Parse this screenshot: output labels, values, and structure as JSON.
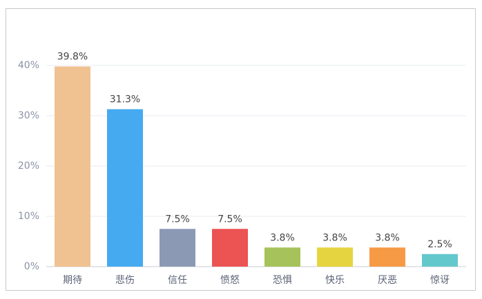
{
  "chart_data": {
    "type": "bar",
    "categories": [
      "期待",
      "悲伤",
      "信任",
      "愤怒",
      "恐惧",
      "快乐",
      "厌恶",
      "惊讶"
    ],
    "values": [
      39.8,
      31.3,
      7.5,
      7.5,
      3.8,
      3.8,
      3.8,
      2.5
    ],
    "value_labels": [
      "39.8%",
      "31.3%",
      "7.5%",
      "7.5%",
      "3.8%",
      "3.8%",
      "3.8%",
      "2.5%"
    ],
    "colors": [
      "#f0c291",
      "#45aaf0",
      "#8c99b5",
      "#ec5353",
      "#a5c35a",
      "#e5d440",
      "#f69a45",
      "#63c8cc"
    ],
    "ylim": [
      0,
      40
    ],
    "yticks": [
      {
        "value": 0,
        "label": "0%"
      },
      {
        "value": 10,
        "label": "10%"
      },
      {
        "value": 20,
        "label": "20%"
      },
      {
        "value": 30,
        "label": "30%"
      },
      {
        "value": 40,
        "label": "40%"
      }
    ],
    "grid": true
  }
}
